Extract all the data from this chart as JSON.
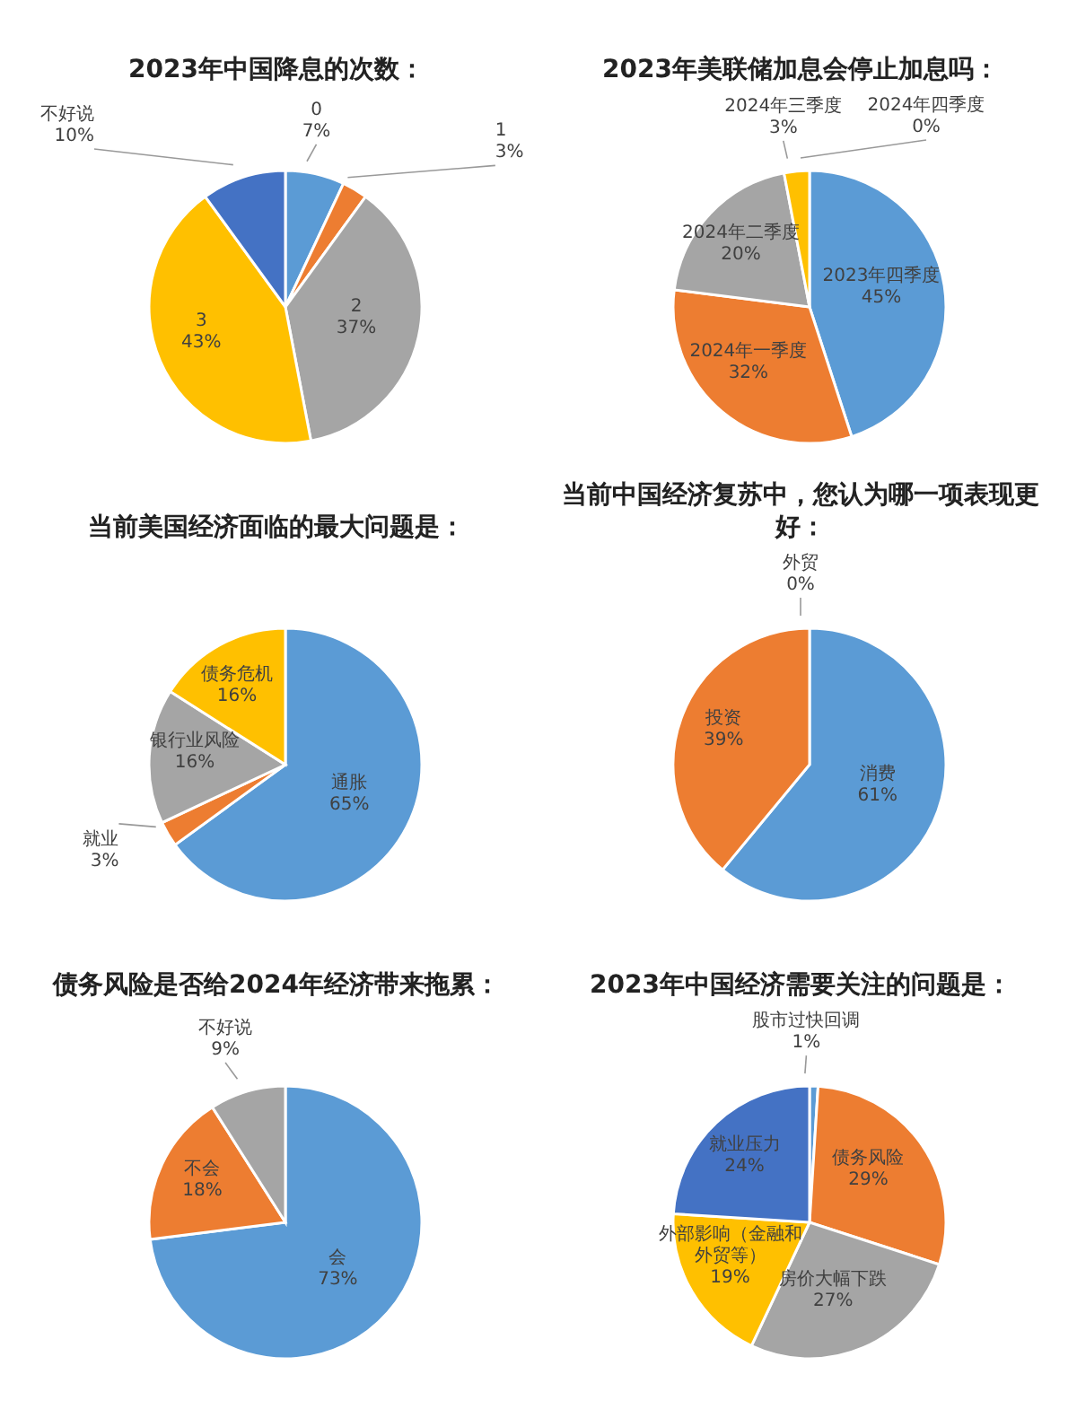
{
  "chart_data": [
    {
      "type": "pie",
      "title": "2023年中国降息的次数：",
      "categories": [
        "0",
        "1",
        "2",
        "3",
        "不好说"
      ],
      "values": [
        7,
        3,
        37,
        43,
        10
      ],
      "value_labels": [
        "7%",
        "3%",
        "37%",
        "43%",
        "10%"
      ],
      "colors": [
        "#5b9bd5",
        "#ed7d31",
        "#a5a5a5",
        "#ffc000",
        "#4472c4"
      ]
    },
    {
      "type": "pie",
      "title": "2023年美联储加息会停止加息吗：",
      "categories": [
        "2023年四季度",
        "2024年一季度",
        "2024年二季度",
        "2024年三季度",
        "2024年四季度"
      ],
      "values": [
        45,
        32,
        20,
        3,
        0
      ],
      "value_labels": [
        "45%",
        "32%",
        "20%",
        "3%",
        "0%"
      ],
      "colors": [
        "#5b9bd5",
        "#ed7d31",
        "#a5a5a5",
        "#ffc000",
        "#4472c4"
      ]
    },
    {
      "type": "pie",
      "title": "当前美国经济面临的最大问题是：",
      "categories": [
        "通胀",
        "就业",
        "银行业风险",
        "债务危机"
      ],
      "values": [
        65,
        3,
        16,
        16
      ],
      "value_labels": [
        "65%",
        "3%",
        "16%",
        "16%"
      ],
      "colors": [
        "#5b9bd5",
        "#ed7d31",
        "#a5a5a5",
        "#ffc000"
      ]
    },
    {
      "type": "pie",
      "title": "当前中国经济复苏中，您认为哪一项表现更好：",
      "categories": [
        "消费",
        "投资",
        "外贸"
      ],
      "values": [
        61,
        39,
        0
      ],
      "value_labels": [
        "61%",
        "39%",
        "0%"
      ],
      "colors": [
        "#5b9bd5",
        "#ed7d31",
        "#a5a5a5"
      ]
    },
    {
      "type": "pie",
      "title": "债务风险是否给2024年经济带来拖累：",
      "categories": [
        "会",
        "不会",
        "不好说"
      ],
      "values": [
        73,
        18,
        9
      ],
      "value_labels": [
        "73%",
        "18%",
        "9%"
      ],
      "colors": [
        "#5b9bd5",
        "#ed7d31",
        "#a5a5a5"
      ]
    },
    {
      "type": "pie",
      "title": "2023年中国经济需要关注的问题是：",
      "categories": [
        "股市过快回调",
        "债务风险",
        "房价大幅下跌",
        "外部影响（金融和外贸等）",
        "就业压力"
      ],
      "values": [
        1,
        29,
        27,
        19,
        24
      ],
      "value_labels": [
        "1%",
        "29%",
        "27%",
        "19%",
        "24%"
      ],
      "colors": [
        "#5b9bd5",
        "#ed7d31",
        "#a5a5a5",
        "#ffc000",
        "#4472c4"
      ]
    }
  ]
}
